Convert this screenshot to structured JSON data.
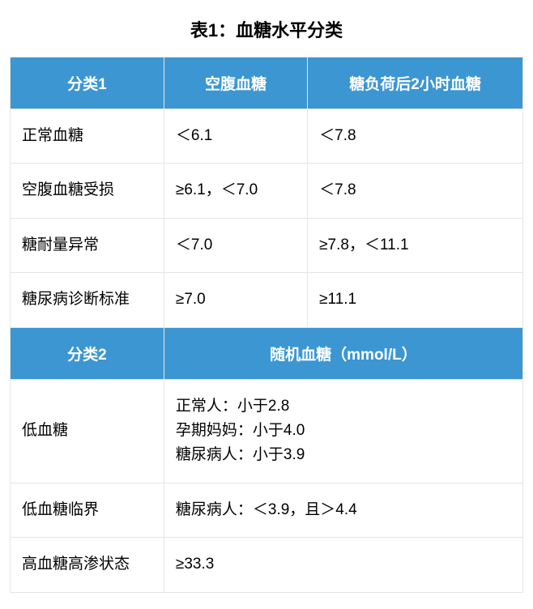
{
  "title": "表1：血糖水平分类",
  "styling": {
    "header_bg": "#3c96d2",
    "header_fg": "#ffffff",
    "cell_bg": "#ffffff",
    "cell_fg": "#000000",
    "border_color": "#e5e5e5",
    "title_fontsize": 22,
    "header_fontsize": 19,
    "cell_fontsize": 19,
    "col_widths_pct": [
      30,
      28,
      42
    ]
  },
  "section1": {
    "headers": [
      "分类1",
      "空腹血糖",
      "糖负荷后2小时血糖"
    ],
    "rows": [
      {
        "label": "正常血糖",
        "fasting": "＜6.1",
        "post2h": "＜7.8"
      },
      {
        "label": "空腹血糖受损",
        "fasting": "≥6.1，＜7.0",
        "post2h": "＜7.8"
      },
      {
        "label": "糖耐量异常",
        "fasting": "＜7.0",
        "post2h": "≥7.8，＜11.1"
      },
      {
        "label": "糖尿病诊断标准",
        "fasting": "≥7.0",
        "post2h": "≥11.1"
      }
    ]
  },
  "section2": {
    "headers": [
      "分类2",
      "随机血糖（mmol/L）"
    ],
    "rows": [
      {
        "label": "低血糖",
        "random": "正常人：小于2.8\n孕期妈妈：小于4.0\n糖尿病人：小于3.9"
      },
      {
        "label": "低血糖临界",
        "random": "糖尿病人：＜3.9，且＞4.4"
      },
      {
        "label": "高血糖高渗状态",
        "random": "≥33.3"
      }
    ]
  }
}
